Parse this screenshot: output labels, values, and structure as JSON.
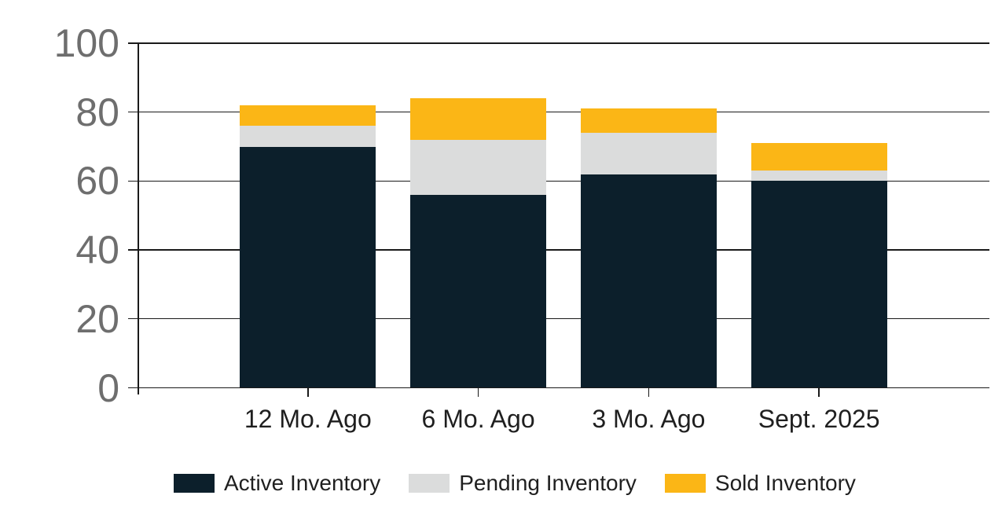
{
  "chart_data": {
    "type": "bar",
    "stacked": true,
    "categories": [
      "12 Mo. Ago",
      "6 Mo. Ago",
      "3 Mo. Ago",
      "Sept. 2025"
    ],
    "series": [
      {
        "name": "Active Inventory",
        "color": "#0C1F2B",
        "values": [
          70,
          56,
          62,
          60
        ]
      },
      {
        "name": "Pending Inventory",
        "color": "#DBDCDC",
        "values": [
          6,
          16,
          12,
          3
        ]
      },
      {
        "name": "Sold Inventory",
        "color": "#FBB616",
        "values": [
          6,
          12,
          7,
          8
        ]
      }
    ],
    "stack_totals": [
      82,
      84,
      81,
      71
    ],
    "ylim": [
      0,
      100
    ],
    "yticks": [
      0,
      20,
      40,
      60,
      80,
      100
    ],
    "grid": "horizontal",
    "legend_position": "bottom"
  },
  "colors": {
    "background": "#FFFFFF",
    "axis_line": "#1A1A1A",
    "y_tick_label": "#6E6E6E",
    "x_tick_label": "#1F1F1F",
    "legend_text": "#1F1F1F"
  }
}
